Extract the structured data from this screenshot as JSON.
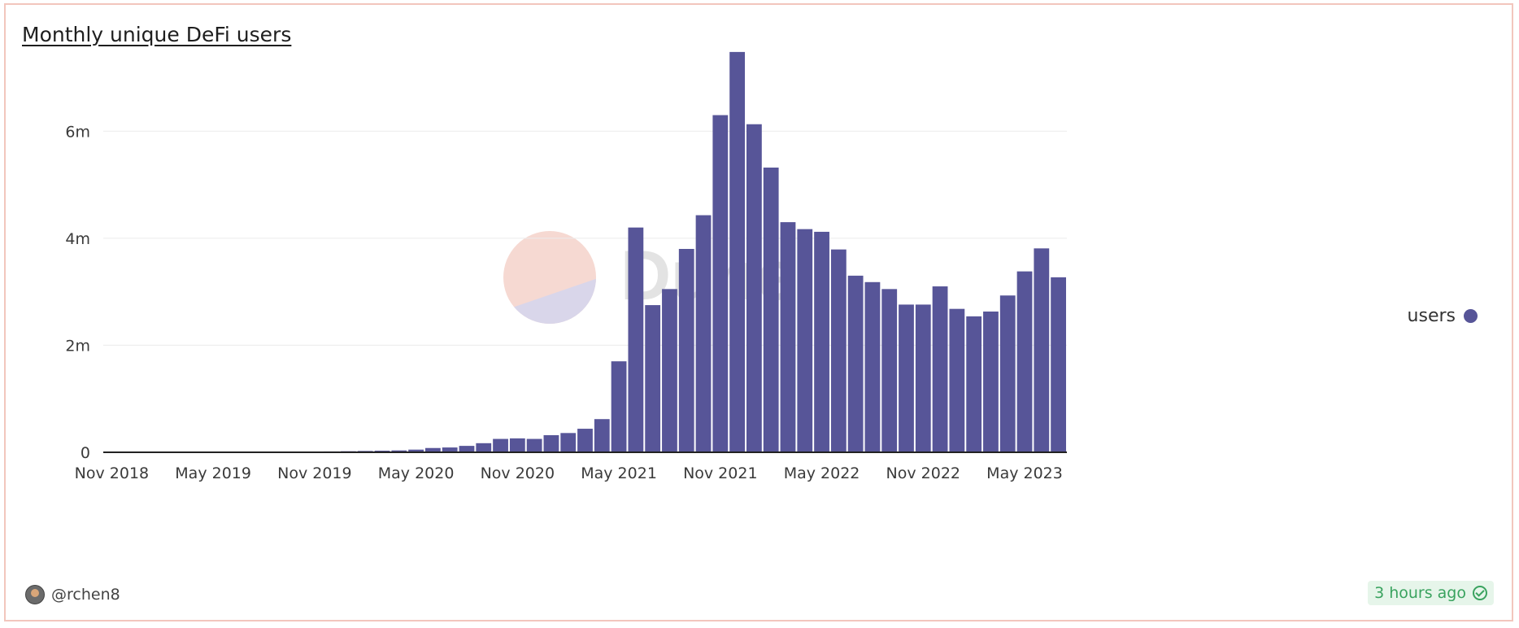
{
  "title": "Monthly unique DeFi users",
  "author": "@rchen8",
  "updated": "3 hours ago",
  "watermark": "Dune",
  "colors": {
    "bar": "#575598",
    "grid": "#ececec",
    "axis": "#222222",
    "tick_text": "#3a3a3a"
  },
  "chart_data": {
    "type": "bar",
    "series": [
      {
        "name": "users",
        "values": [
          2000,
          2500,
          3000,
          3500,
          4000,
          5000,
          6000,
          7000,
          8000,
          9000,
          10000,
          12000,
          14000,
          16000,
          20000,
          25000,
          30000,
          35000,
          50000,
          80000,
          90000,
          120000,
          170000,
          250000,
          260000,
          250000,
          320000,
          360000,
          440000,
          620000,
          1700000,
          4200000,
          2750000,
          3050000,
          3800000,
          4430000,
          6300000,
          7480000,
          6130000,
          5320000,
          4300000,
          4170000,
          4120000,
          3790000,
          3300000,
          3180000,
          3050000,
          2760000,
          2760000,
          3100000,
          2680000,
          2540000,
          2630000,
          2930000,
          3380000,
          3810000,
          3270000
        ]
      }
    ],
    "x_start": "Nov 2018",
    "x_end": "Jul 2023",
    "x_ticks": [
      "Nov 2018",
      "May 2019",
      "Nov 2019",
      "May 2020",
      "Nov 2020",
      "May 2021",
      "Nov 2021",
      "May 2022",
      "Nov 2022",
      "May 2023"
    ],
    "y_ticks": [
      "0",
      "2m",
      "4m",
      "6m"
    ],
    "y_tick_values": [
      0,
      2000000,
      4000000,
      6000000
    ],
    "ylim": [
      0,
      7600000
    ],
    "grid": true,
    "legend_position": "right"
  }
}
